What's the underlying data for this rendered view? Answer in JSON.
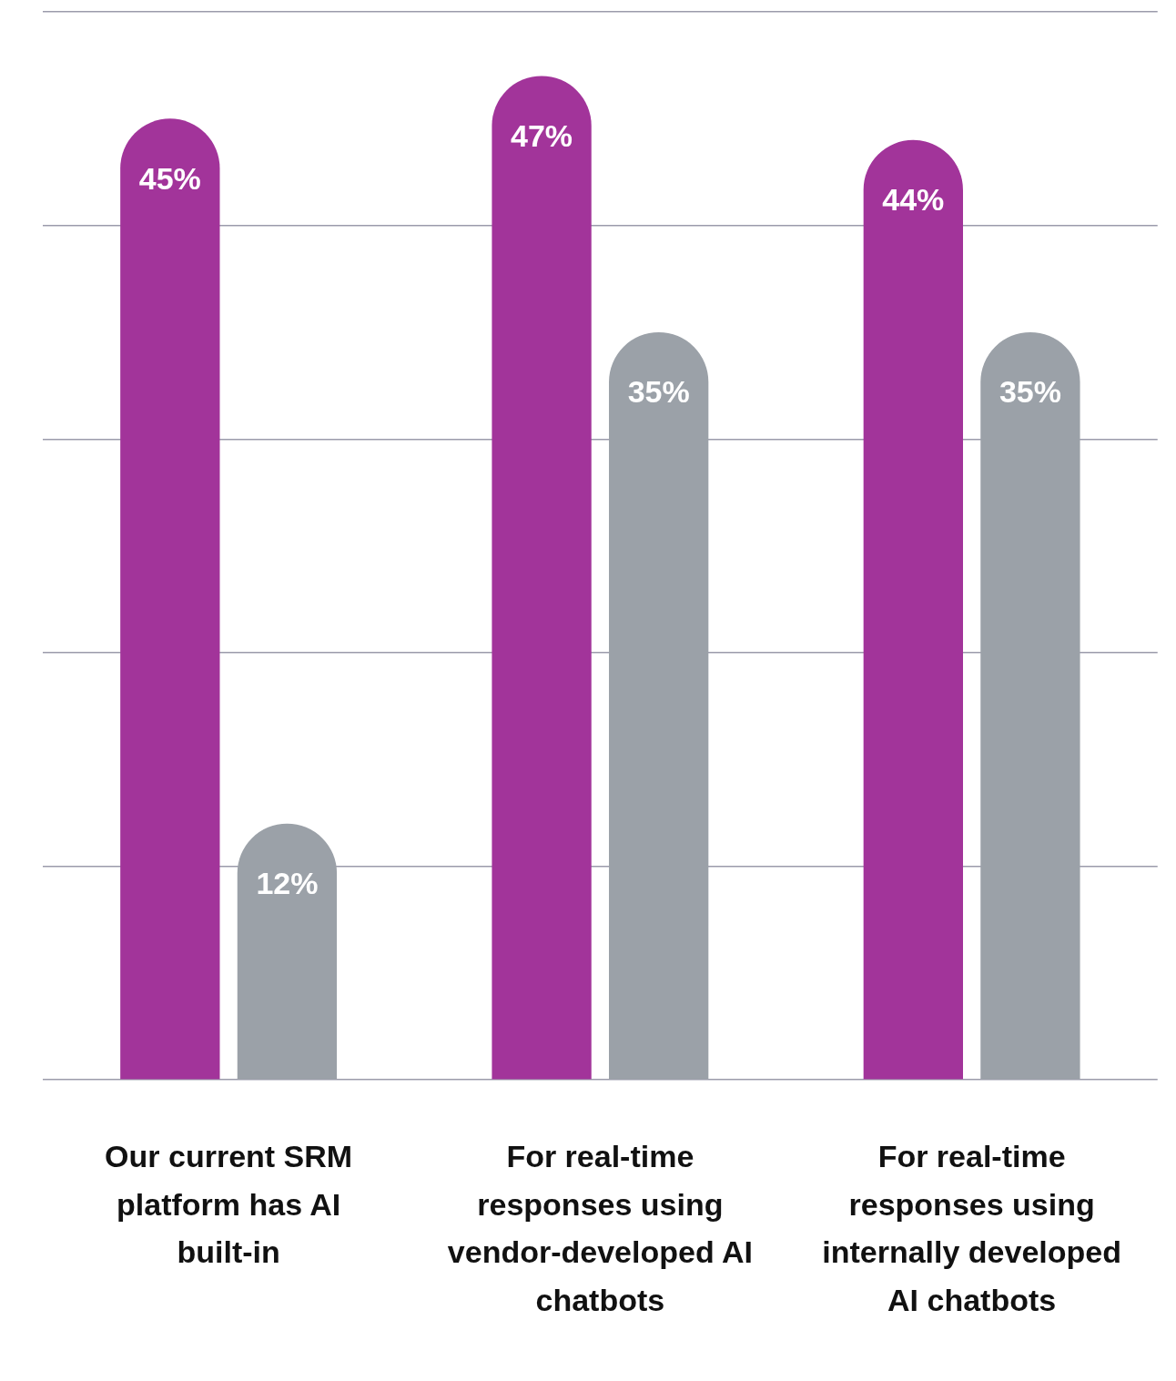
{
  "chart_data": {
    "type": "bar",
    "categories": [
      "Our current SRM platform has AI built-in",
      "For real-time responses using vendor-developed AI chatbots",
      "For real-time responses using internally developed AI chatbots"
    ],
    "series": [
      {
        "color": "#a2349a",
        "values": [
          45,
          47,
          44
        ],
        "value_labels": [
          "45%",
          "47%",
          "44%"
        ]
      },
      {
        "color": "#9ba1a8",
        "values": [
          12,
          35,
          35
        ],
        "value_labels": [
          "12%",
          "35%",
          "35%"
        ]
      }
    ],
    "ylim": [
      0,
      50
    ],
    "yticks": [
      {
        "value": 0,
        "label": null
      },
      {
        "value": 10,
        "label": null
      },
      {
        "value": 20,
        "label": null
      },
      {
        "value": 30,
        "label": null
      },
      {
        "value": 40,
        "label": null
      },
      {
        "value": 50,
        "label": null
      }
    ],
    "grid": "y",
    "legend": false,
    "tick_labels": "x"
  }
}
